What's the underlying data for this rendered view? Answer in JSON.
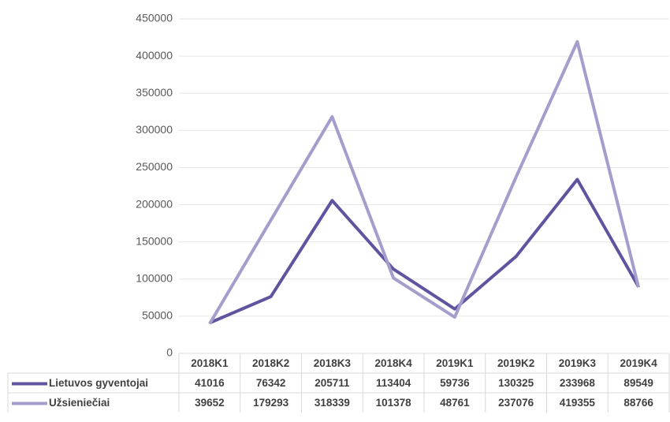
{
  "chart_data": {
    "type": "line",
    "categories": [
      "2018K1",
      "2018K2",
      "2018K3",
      "2018K4",
      "2019K1",
      "2019K2",
      "2019K3",
      "2019K4"
    ],
    "series": [
      {
        "name": "Lietuvos gyventojai",
        "color": "#5f54a0",
        "values": [
          41016,
          76342,
          205711,
          113404,
          59736,
          130325,
          233968,
          89549
        ]
      },
      {
        "name": "Užsieniečiai",
        "color": "#a59dcc",
        "values": [
          39652,
          179293,
          318339,
          101378,
          48761,
          237076,
          419355,
          88766
        ]
      }
    ],
    "ylim": [
      0,
      450000
    ],
    "yticks": [
      0,
      50000,
      100000,
      150000,
      200000,
      250000,
      300000,
      350000,
      400000,
      450000
    ],
    "grid": true,
    "data_table": true
  }
}
